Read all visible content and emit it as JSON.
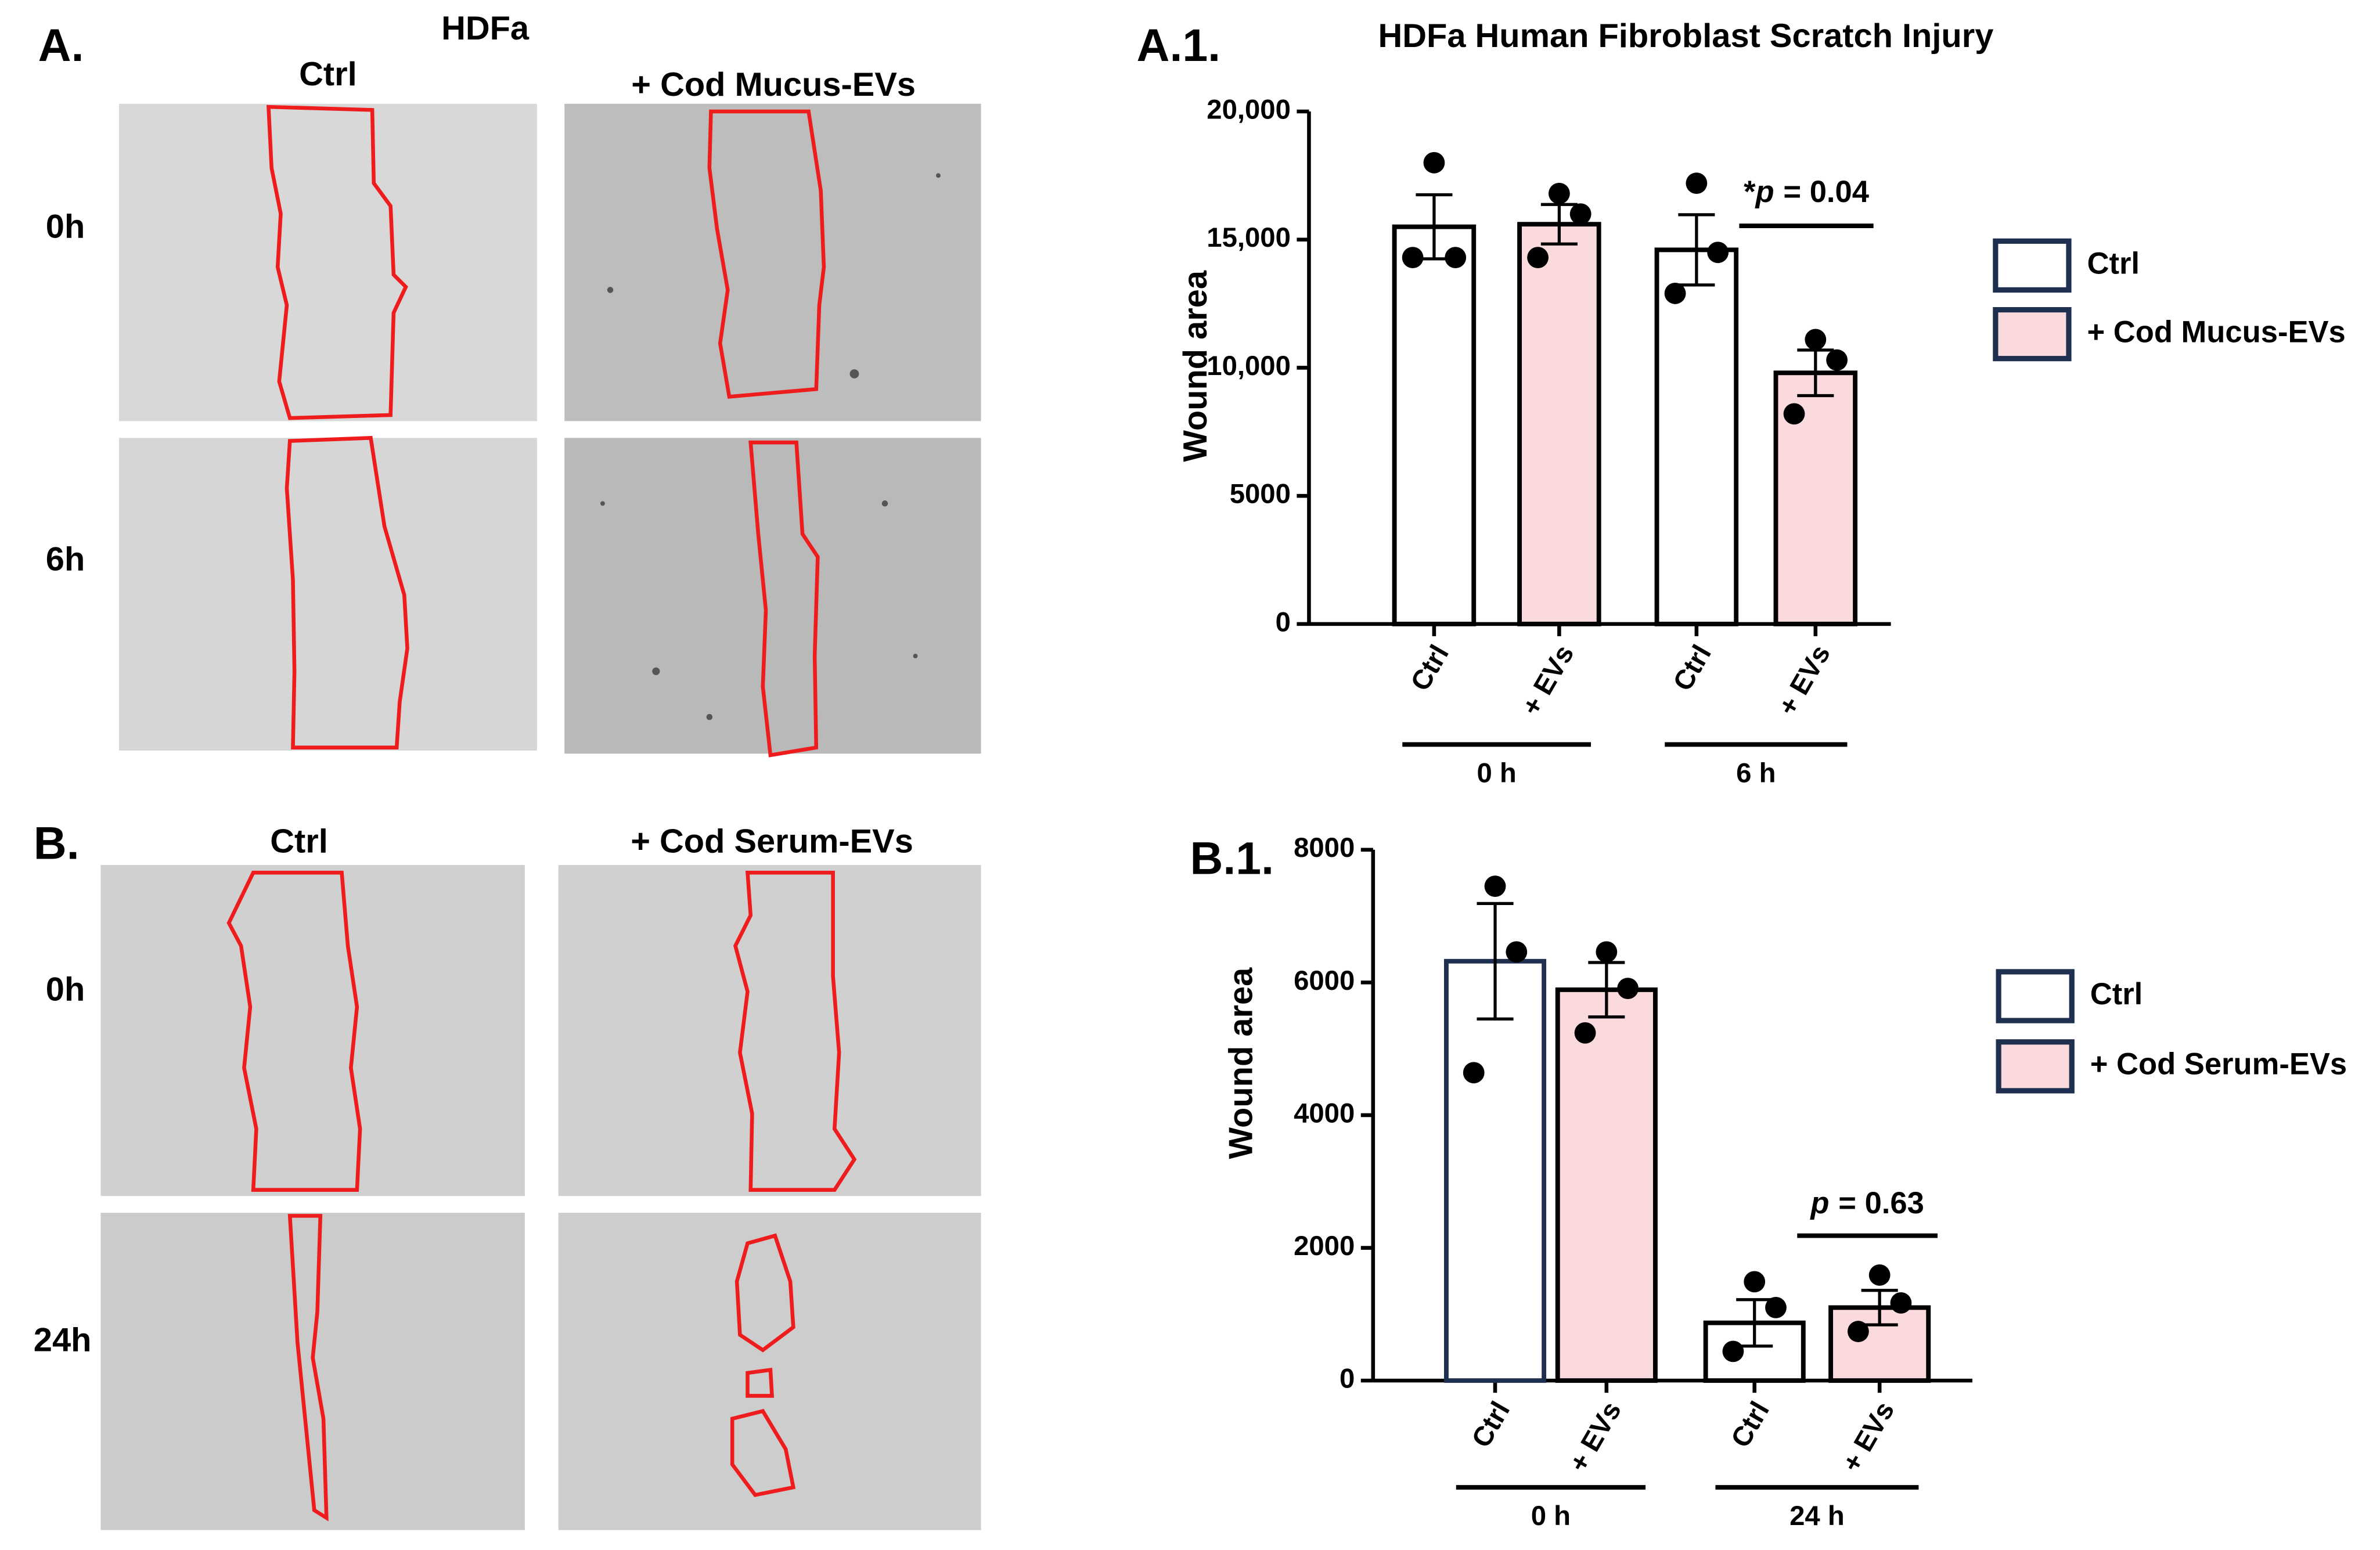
{
  "micrographs": {
    "A": {
      "label": "A.",
      "cell_line": "HDFa",
      "columns": [
        "Ctrl",
        "+ Cod Mucus-EVs"
      ],
      "rows": [
        "0h",
        "6h"
      ]
    },
    "B": {
      "label": "B.",
      "columns": [
        "Ctrl",
        "+ Cod Serum-EVs"
      ],
      "rows": [
        "0h",
        "24h"
      ]
    }
  },
  "chart_data": [
    {
      "type": "bar",
      "panel_label": "A.1.",
      "title": "HDFa Human Fibroblast Scratch Injury",
      "y_label": "Wound area",
      "categories": [
        "Ctrl",
        "+ EVs",
        "Ctrl",
        "+ EVs"
      ],
      "groups": [
        "0 h",
        "6 h"
      ],
      "values": [
        15500,
        15600,
        14600,
        9800
      ],
      "errors": [
        1250,
        770,
        1370,
        890
      ],
      "points": [
        [
          18000,
          14300,
          14300
        ],
        [
          16800,
          16000,
          14300
        ],
        [
          17200,
          14500,
          12900
        ],
        [
          11100,
          10300,
          8200
        ]
      ],
      "bar_colors": [
        "#ffffff",
        "#fadadd",
        "#ffffff",
        "#fadadd"
      ],
      "edge_colors": [
        "#000000",
        "#000000",
        "#000000",
        "#000000"
      ],
      "legend": [
        {
          "name": "Ctrl",
          "color": "#ffffff"
        },
        {
          "name": "+ Cod Mucus-EVs",
          "color": "#fadadd"
        }
      ],
      "annotation": {
        "star": "*",
        "p": "p",
        "text": "= 0.04",
        "between": [
          2,
          3
        ]
      },
      "ylim": [
        0,
        20000
      ],
      "yticks": [
        0,
        5000,
        {
          "value": 10000,
          "label": "10,000"
        },
        {
          "value": 15000,
          "label": "15,000"
        },
        {
          "value": 20000,
          "label": "20,000"
        }
      ]
    },
    {
      "type": "bar",
      "panel_label": "B.1.",
      "y_label": "Wound area",
      "categories": [
        "Ctrl",
        "+ EVs",
        "Ctrl",
        "+ EVs"
      ],
      "groups": [
        "0 h",
        "24 h"
      ],
      "values": [
        6320,
        5890,
        870,
        1100
      ],
      "errors": [
        870,
        410,
        350,
        260
      ],
      "points": [
        [
          7450,
          6460,
          4640
        ],
        [
          6460,
          5910,
          5240
        ],
        [
          1490,
          1100,
          440
        ],
        [
          1590,
          1170,
          740
        ]
      ],
      "bar_colors": [
        "#ffffff",
        "#fadadd",
        "#ffffff",
        "#fadadd"
      ],
      "edge_colors": [
        "#1f2f4f",
        "#000000",
        "#000000",
        "#000000"
      ],
      "legend": [
        {
          "name": "Ctrl",
          "color": "#ffffff"
        },
        {
          "name": "+ Cod Serum-EVs",
          "color": "#fadadd"
        }
      ],
      "annotation": {
        "p": "p",
        "text": "= 0.63",
        "between": [
          2,
          3
        ]
      },
      "ylim": [
        0,
        8000
      ],
      "yticks": [
        0,
        2000,
        4000,
        6000,
        8000
      ]
    }
  ]
}
